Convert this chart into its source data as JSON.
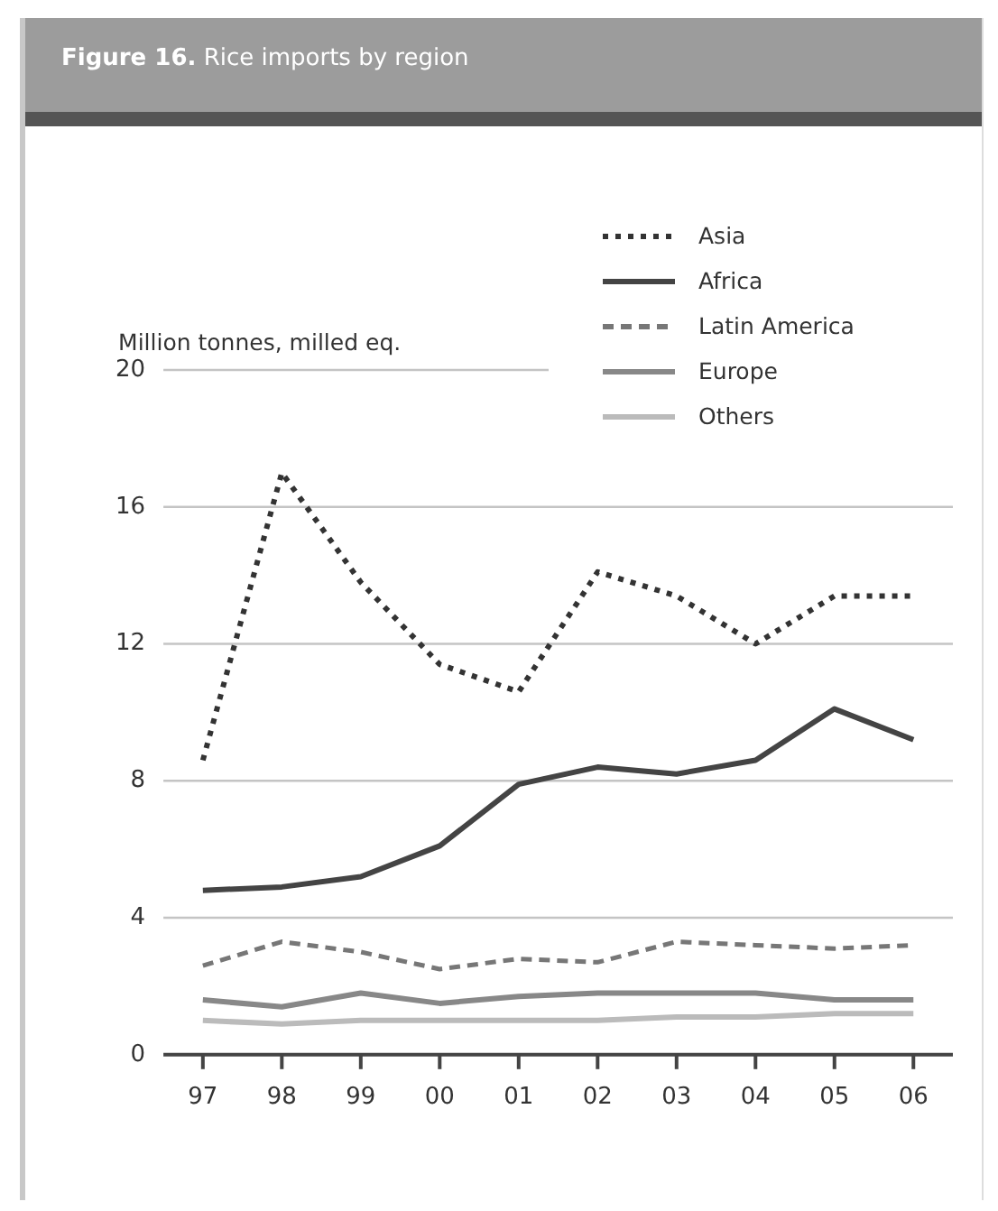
{
  "chart_data": {
    "type": "line",
    "title": "Figure 16. Rice imports by region",
    "ylabel": "Million tonnes, milled eq.",
    "categories": [
      "97",
      "98",
      "99",
      "00",
      "01",
      "02",
      "03",
      "04",
      "05",
      "06"
    ],
    "series": [
      {
        "name": "Asia",
        "color": "#333333",
        "line_style": "dotted",
        "values": [
          8.6,
          17.0,
          13.8,
          11.4,
          10.6,
          14.1,
          13.4,
          12.0,
          13.4,
          13.4
        ]
      },
      {
        "name": "Africa",
        "color": "#444444",
        "line_style": "solid",
        "values": [
          4.8,
          4.9,
          5.2,
          6.1,
          7.9,
          8.4,
          8.2,
          8.6,
          10.1,
          9.2
        ]
      },
      {
        "name": "Latin America",
        "color": "#777777",
        "line_style": "dashed",
        "values": [
          2.6,
          3.3,
          3.0,
          2.5,
          2.8,
          2.7,
          3.3,
          3.2,
          3.1,
          3.2
        ]
      },
      {
        "name": "Europe",
        "color": "#888888",
        "line_style": "solid",
        "values": [
          1.6,
          1.4,
          1.8,
          1.5,
          1.7,
          1.8,
          1.8,
          1.8,
          1.6,
          1.6
        ]
      },
      {
        "name": "Others",
        "color": "#bbbbbb",
        "line_style": "solid",
        "values": [
          1.0,
          0.9,
          1.0,
          1.0,
          1.0,
          1.0,
          1.1,
          1.1,
          1.2,
          1.2
        ]
      }
    ],
    "ylim": [
      0,
      20
    ],
    "yticks": [
      0,
      4,
      8,
      12,
      16,
      20
    ],
    "grid": "y",
    "legend": "top right",
    "marker": "none"
  }
}
